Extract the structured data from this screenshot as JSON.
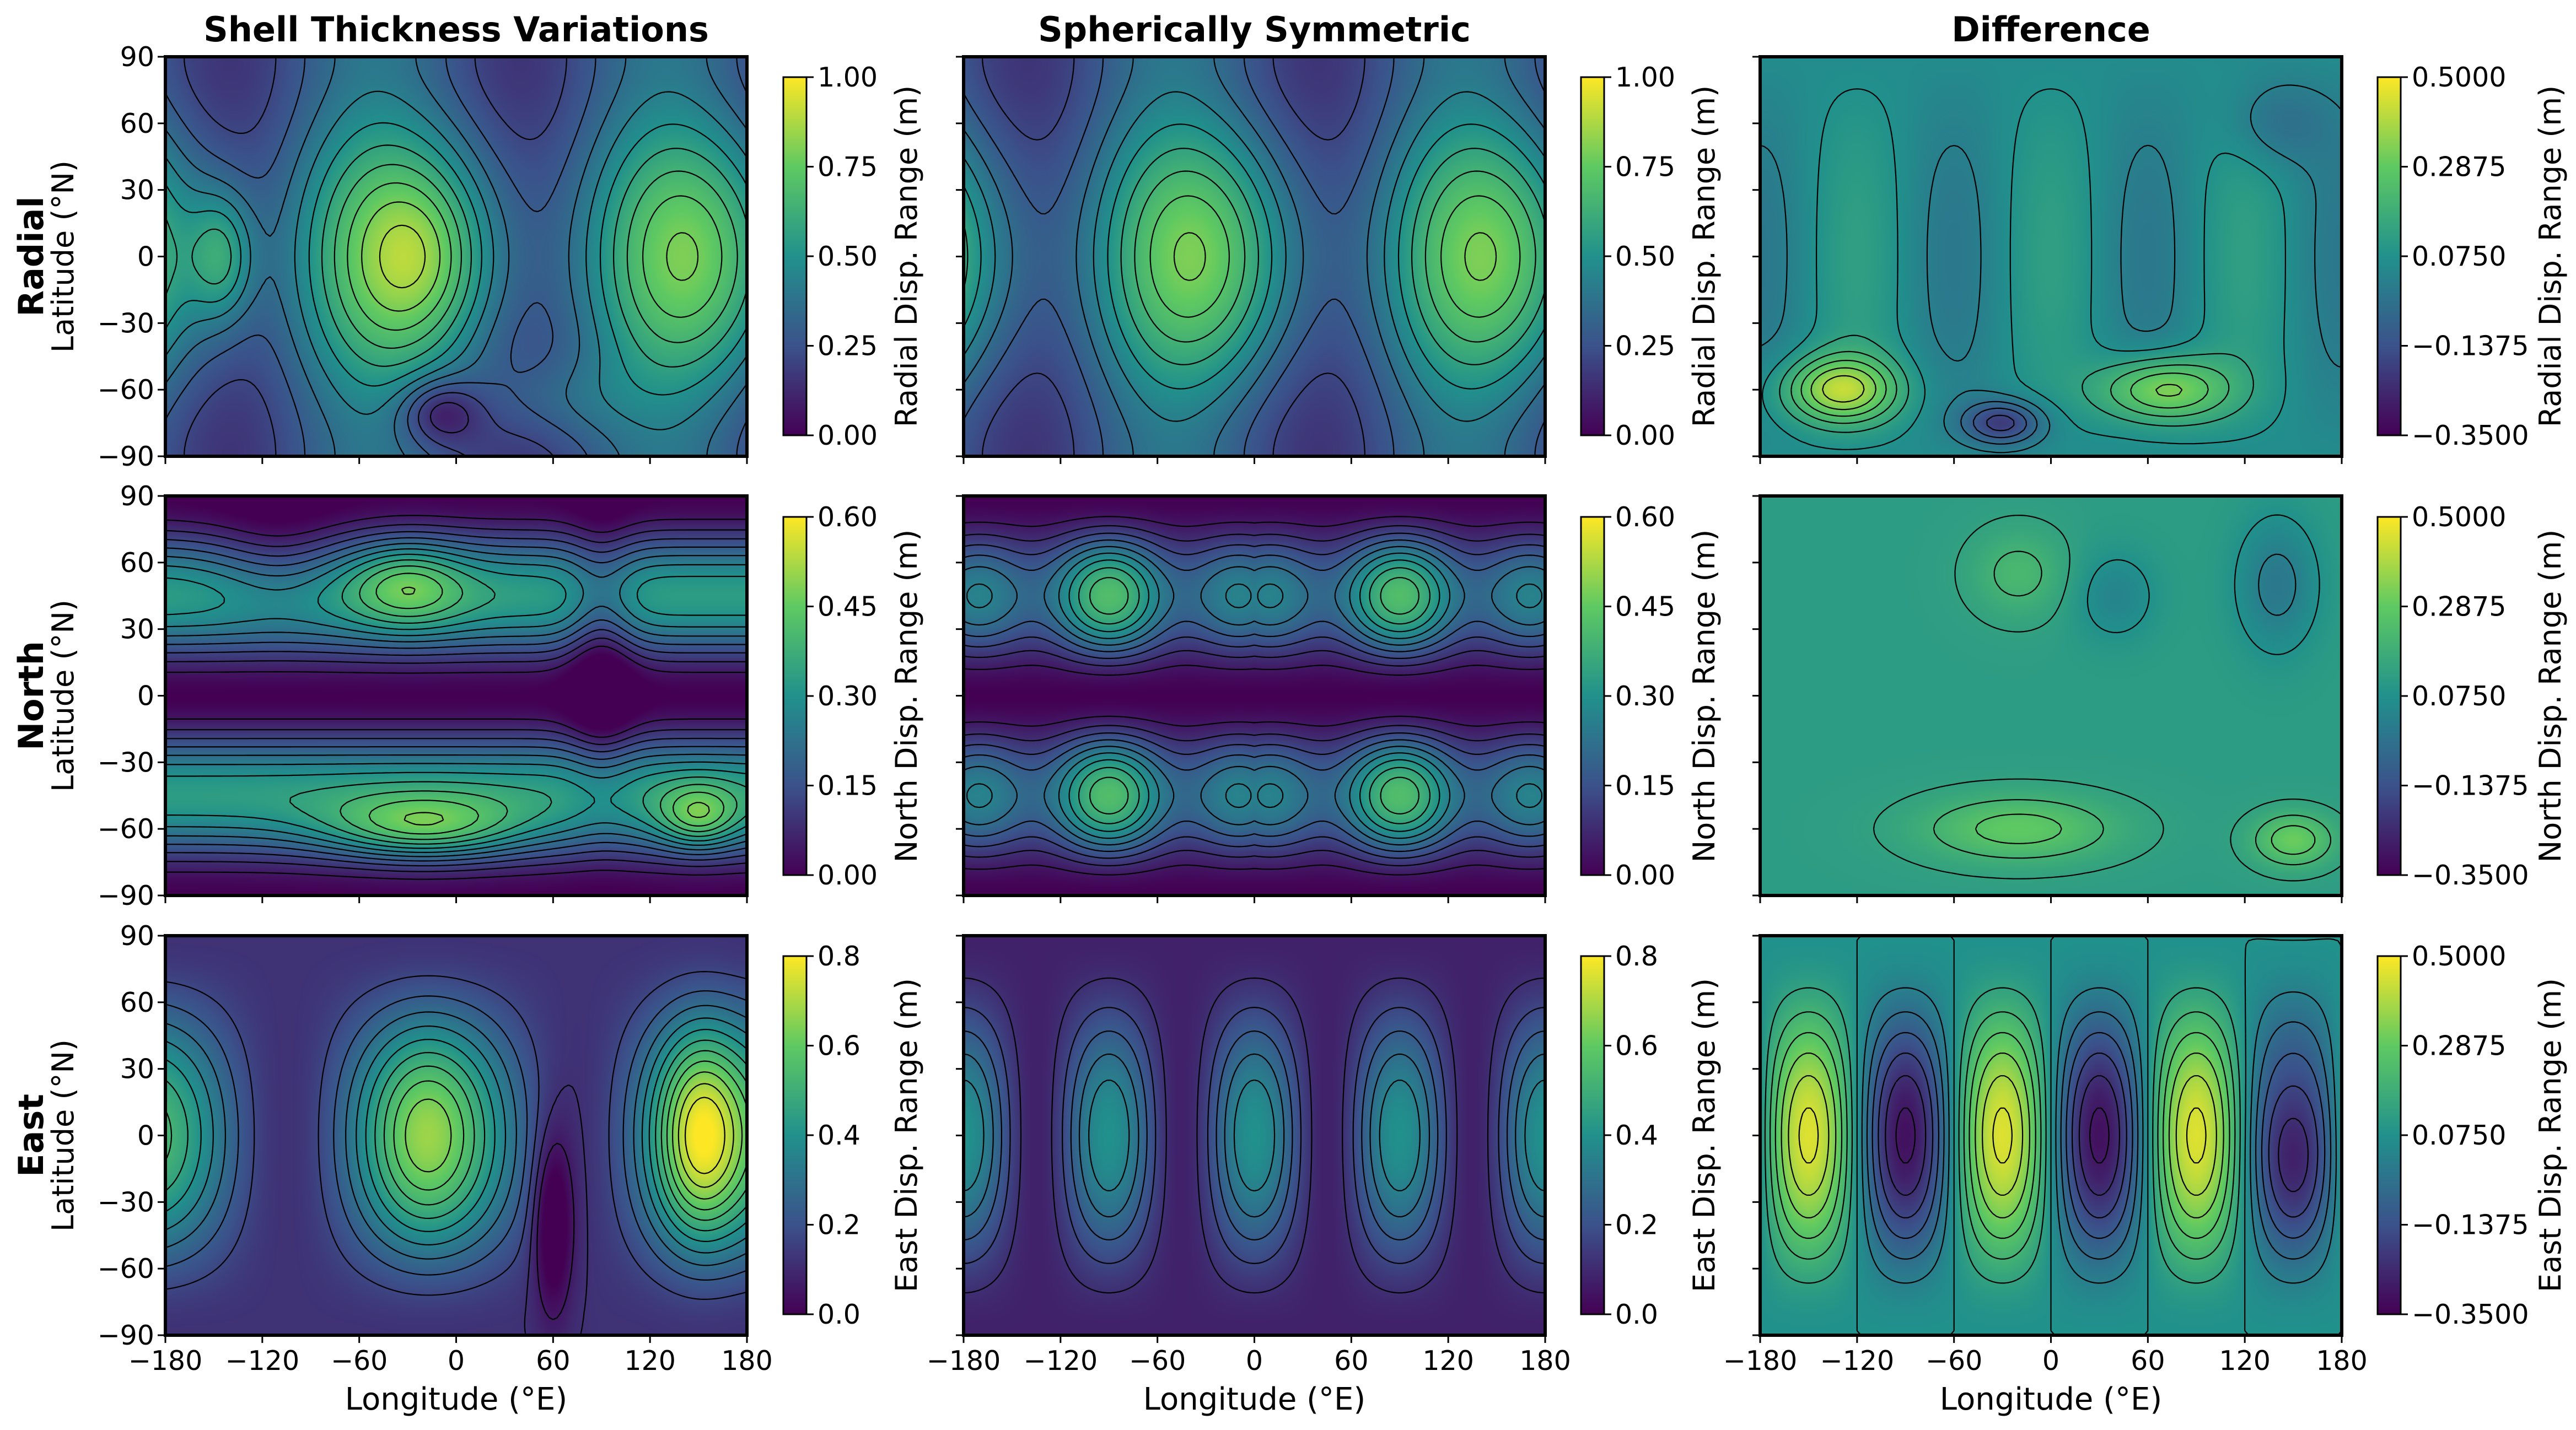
{
  "figure": {
    "columns": [
      "Shell Thickness Variations",
      "Spherically Symmetric",
      "Difference"
    ],
    "rows": [
      "Radial",
      "North",
      "East"
    ]
  },
  "chart_data": {
    "type": "heatmap",
    "colormap": "viridis",
    "colormap_stops": [
      "#440154",
      "#3b528b",
      "#21918c",
      "#5ec962",
      "#fde725"
    ],
    "xlabel": "Longitude (°E)",
    "ylabel": "Latitude (°N)",
    "xlim": [
      -180,
      180
    ],
    "ylim": [
      -90,
      90
    ],
    "x_ticks": [
      "−180",
      "−120",
      "−60",
      "0",
      "60",
      "120",
      "180"
    ],
    "y_ticks": [
      "90",
      "60",
      "30",
      "0",
      "−30",
      "−60",
      "−90"
    ],
    "panels": [
      {
        "row": "Radial",
        "column": "Shell Thickness Variations",
        "field": "radial_shell",
        "colorbar_label": "Radial Disp. Range (m)",
        "clim": [
          0,
          1.0
        ],
        "colorbar_ticks": [
          "1.00",
          "0.75",
          "0.50",
          "0.25",
          "0.00"
        ]
      },
      {
        "row": "Radial",
        "column": "Spherically Symmetric",
        "field": "radial_sym",
        "colorbar_label": "Radial Disp. Range (m)",
        "clim": [
          0,
          1.0
        ],
        "colorbar_ticks": [
          "1.00",
          "0.75",
          "0.50",
          "0.25",
          "0.00"
        ]
      },
      {
        "row": "Radial",
        "column": "Difference",
        "field": "radial_diff",
        "colorbar_label": "Radial Disp. Range (m)",
        "clim": [
          -0.35,
          0.5
        ],
        "colorbar_ticks": [
          "0.5000",
          "0.2875",
          "0.0750",
          "−0.1375",
          "−0.3500"
        ]
      },
      {
        "row": "North",
        "column": "Shell Thickness Variations",
        "field": "north_shell",
        "colorbar_label": "North Disp. Range (m)",
        "clim": [
          0,
          0.6
        ],
        "colorbar_ticks": [
          "0.60",
          "0.45",
          "0.30",
          "0.15",
          "0.00"
        ]
      },
      {
        "row": "North",
        "column": "Spherically Symmetric",
        "field": "north_sym",
        "colorbar_label": "North Disp. Range (m)",
        "clim": [
          0,
          0.6
        ],
        "colorbar_ticks": [
          "0.60",
          "0.45",
          "0.30",
          "0.15",
          "0.00"
        ]
      },
      {
        "row": "North",
        "column": "Difference",
        "field": "north_diff",
        "colorbar_label": "North Disp. Range (m)",
        "clim": [
          -0.35,
          0.5
        ],
        "colorbar_ticks": [
          "0.5000",
          "0.2875",
          "0.0750",
          "−0.1375",
          "−0.3500"
        ]
      },
      {
        "row": "East",
        "column": "Shell Thickness Variations",
        "field": "east_shell",
        "colorbar_label": "East Disp. Range (m)",
        "clim": [
          0,
          0.8
        ],
        "colorbar_ticks": [
          "0.8",
          "0.6",
          "0.4",
          "0.2",
          "0.0"
        ]
      },
      {
        "row": "East",
        "column": "Spherically Symmetric",
        "field": "east_sym",
        "colorbar_label": "East Disp. Range (m)",
        "clim": [
          0,
          0.8
        ],
        "colorbar_ticks": [
          "0.8",
          "0.6",
          "0.4",
          "0.2",
          "0.0"
        ]
      },
      {
        "row": "East",
        "column": "Difference",
        "field": "east_diff",
        "colorbar_label": "East Disp. Range (m)",
        "clim": [
          -0.35,
          0.5
        ],
        "colorbar_ticks": [
          "0.5000",
          "0.2875",
          "0.0750",
          "−0.1375",
          "−0.3500"
        ]
      }
    ]
  }
}
